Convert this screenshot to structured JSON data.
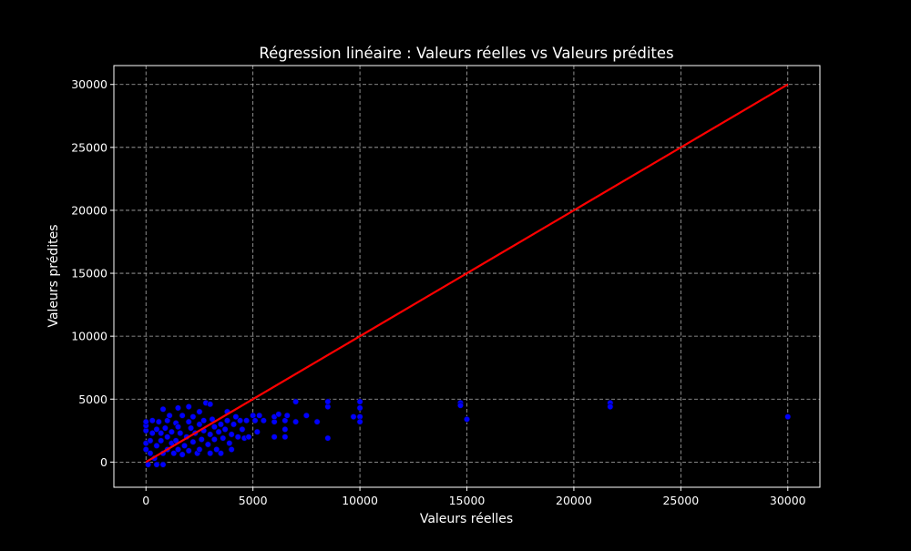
{
  "chart_data": {
    "type": "scatter",
    "title": "Régression linéaire : Valeurs réelles vs Valeurs prédites",
    "xlabel": "Valeurs réelles",
    "ylabel": "Valeurs prédites",
    "xlim": [
      -1500,
      31500
    ],
    "ylim": [
      -2000,
      31500
    ],
    "xticks": [
      0,
      5000,
      10000,
      15000,
      20000,
      25000,
      30000
    ],
    "yticks": [
      0,
      5000,
      10000,
      15000,
      20000,
      25000,
      30000
    ],
    "grid": true,
    "grid_style": "dashed",
    "colors": {
      "background": "#000000",
      "axes": "#ffffff",
      "grid": "#b0b0b0",
      "points": "#0000ff",
      "line": "#ff0000"
    },
    "reference_line": {
      "x": [
        0,
        30000
      ],
      "y": [
        0,
        30000
      ]
    },
    "points": [
      [
        0,
        1000
      ],
      [
        0,
        1500
      ],
      [
        0,
        2500
      ],
      [
        0,
        2900
      ],
      [
        0,
        3200
      ],
      [
        100,
        -200
      ],
      [
        200,
        700
      ],
      [
        200,
        1700
      ],
      [
        300,
        2300
      ],
      [
        300,
        3300
      ],
      [
        400,
        300
      ],
      [
        500,
        -200
      ],
      [
        500,
        1300
      ],
      [
        500,
        2600
      ],
      [
        600,
        3200
      ],
      [
        700,
        1700
      ],
      [
        700,
        2300
      ],
      [
        800,
        -200
      ],
      [
        800,
        4200
      ],
      [
        800,
        700
      ],
      [
        900,
        2700
      ],
      [
        1000,
        1000
      ],
      [
        1000,
        2000
      ],
      [
        1000,
        3300
      ],
      [
        1100,
        3700
      ],
      [
        1200,
        1500
      ],
      [
        1200,
        2400
      ],
      [
        1300,
        700
      ],
      [
        1400,
        1700
      ],
      [
        1400,
        3100
      ],
      [
        1500,
        1000
      ],
      [
        1500,
        2800
      ],
      [
        1500,
        4300
      ],
      [
        1600,
        2300
      ],
      [
        1700,
        3700
      ],
      [
        1700,
        600
      ],
      [
        1800,
        1300
      ],
      [
        1900,
        2000
      ],
      [
        2000,
        3200
      ],
      [
        2000,
        4400
      ],
      [
        2000,
        900
      ],
      [
        2100,
        2700
      ],
      [
        2200,
        1600
      ],
      [
        2200,
        3600
      ],
      [
        2300,
        2300
      ],
      [
        2400,
        700
      ],
      [
        2500,
        1000
      ],
      [
        2500,
        3000
      ],
      [
        2500,
        4000
      ],
      [
        2600,
        1800
      ],
      [
        2700,
        3300
      ],
      [
        2700,
        2500
      ],
      [
        2800,
        4700
      ],
      [
        2900,
        1400
      ],
      [
        3000,
        2200
      ],
      [
        3000,
        4600
      ],
      [
        3000,
        700
      ],
      [
        3100,
        3400
      ],
      [
        3200,
        2800
      ],
      [
        3200,
        1800
      ],
      [
        3300,
        1000
      ],
      [
        3400,
        2400
      ],
      [
        3500,
        3000
      ],
      [
        3500,
        700
      ],
      [
        3600,
        1900
      ],
      [
        3700,
        2600
      ],
      [
        3800,
        3300
      ],
      [
        3800,
        4000
      ],
      [
        3900,
        1500
      ],
      [
        4000,
        2200
      ],
      [
        4000,
        1000
      ],
      [
        4100,
        3000
      ],
      [
        4200,
        3600
      ],
      [
        4300,
        2000
      ],
      [
        4400,
        3300
      ],
      [
        4500,
        2600
      ],
      [
        4600,
        1900
      ],
      [
        4700,
        3300
      ],
      [
        4800,
        2000
      ],
      [
        5000,
        3700
      ],
      [
        5100,
        3300
      ],
      [
        5200,
        2400
      ],
      [
        5300,
        3700
      ],
      [
        5500,
        3300
      ],
      [
        6000,
        3200
      ],
      [
        6000,
        3600
      ],
      [
        6000,
        2000
      ],
      [
        6200,
        3800
      ],
      [
        6500,
        2600
      ],
      [
        6500,
        3300
      ],
      [
        6600,
        3700
      ],
      [
        6500,
        2000
      ],
      [
        7000,
        3200
      ],
      [
        7000,
        4800
      ],
      [
        7500,
        3700
      ],
      [
        8000,
        3200
      ],
      [
        8500,
        4400
      ],
      [
        8500,
        4800
      ],
      [
        8500,
        1900
      ],
      [
        9700,
        3600
      ],
      [
        10000,
        4800
      ],
      [
        10000,
        4300
      ],
      [
        10000,
        3600
      ],
      [
        10000,
        3200
      ],
      [
        14700,
        4700
      ],
      [
        14700,
        4500
      ],
      [
        15000,
        3400
      ],
      [
        21700,
        4700
      ],
      [
        21700,
        4400
      ],
      [
        30000,
        3600
      ]
    ]
  }
}
